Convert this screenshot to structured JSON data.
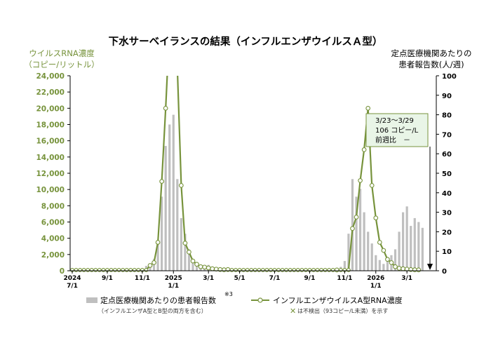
{
  "chart_data": {
    "type": "bar+line",
    "title": "下水サーベイランスの結果（インフルエンザウイルスＡ型）",
    "left_axis": {
      "label_line1": "ウイルスRNA濃度",
      "label_line2": "（コピー/リットル）",
      "ylim": [
        0,
        24000
      ],
      "ticks": [
        0,
        2000,
        4000,
        6000,
        8000,
        10000,
        12000,
        14000,
        16000,
        18000,
        20000,
        22000,
        24000
      ],
      "tick_labels": [
        "0",
        "2,000",
        "4,000",
        "6,000",
        "8,000",
        "10,000",
        "12,000",
        "14,000",
        "16,000",
        "18,000",
        "20,000",
        "22,000",
        "24,000"
      ],
      "color": "#77933c"
    },
    "right_axis": {
      "label_line1": "定点医療機関あたりの",
      "label_line2": "患者報告数(人/週)",
      "ylim": [
        0,
        100
      ],
      "ticks": [
        0,
        10,
        20,
        30,
        40,
        50,
        60,
        70,
        80,
        90,
        100
      ],
      "tick_labels": [
        "0",
        "10",
        "20",
        "30",
        "40",
        "50",
        "60",
        "70",
        "80",
        "90",
        "100"
      ]
    },
    "x_ticks": [
      {
        "week": 0,
        "line1": "2024",
        "line2": "7/1"
      },
      {
        "week": 9,
        "line1": "9/1",
        "line2": ""
      },
      {
        "week": 18,
        "line1": "11/1",
        "line2": ""
      },
      {
        "week": 26,
        "line1": "2025",
        "line2": "1/1"
      },
      {
        "week": 35,
        "line1": "3/1",
        "line2": ""
      },
      {
        "week": 43,
        "line1": "5/1",
        "line2": ""
      },
      {
        "week": 52,
        "line1": "7/1",
        "line2": ""
      },
      {
        "week": 61,
        "line1": "9/1",
        "line2": ""
      },
      {
        "week": 70,
        "line1": "11/1",
        "line2": ""
      },
      {
        "week": 78,
        "line1": "2026",
        "line2": "1/1"
      },
      {
        "week": 86,
        "line1": "3/1",
        "line2": ""
      }
    ],
    "bars_series": {
      "name": "定点医療機関あたりの患者報告数",
      "note_mark": "※3",
      "sublabel": "（インフルエンザA型とB型の両方を含む）",
      "color": "#bfbfbf",
      "values": [
        0.1,
        0.1,
        0.1,
        0.1,
        0.1,
        0.1,
        0.1,
        0.1,
        0.1,
        0.1,
        0.1,
        0.1,
        0.2,
        0.2,
        0.3,
        0.4,
        0.5,
        0.8,
        1.2,
        2.5,
        3.5,
        6,
        14,
        38,
        64,
        75,
        80,
        47,
        27,
        19,
        11,
        6,
        4,
        3,
        2.5,
        3,
        2,
        1.2,
        1,
        0.5,
        0.3,
        0.2,
        0.2,
        0.1,
        0.1,
        0.1,
        0.1,
        0.1,
        0.1,
        0.1,
        0.1,
        0.1,
        0.1,
        0.1,
        0.1,
        0.1,
        0.1,
        0.1,
        0.1,
        0.1,
        0.1,
        0.1,
        0.1,
        0.1,
        0.1,
        0.2,
        0.3,
        0.5,
        1,
        2,
        5,
        19,
        47,
        38,
        42,
        30,
        20,
        14,
        8,
        5.5,
        3.5,
        5,
        8,
        11,
        20,
        30,
        33,
        23,
        27,
        25,
        22
      ],
      "bar_positions_comment": ""
    },
    "line_series": {
      "name": "インフルエンザウイルスA型RNA濃度",
      "sublabel": "は不検出（93コピー/L未満）を示す",
      "color": "#77933c",
      "values": [
        93,
        93,
        93,
        93,
        93,
        93,
        93,
        93,
        93,
        93,
        93,
        93,
        93,
        93,
        93,
        93,
        93,
        93,
        93,
        93,
        650,
        1000,
        3500,
        11000,
        20000,
        30000,
        60000,
        25000,
        10500,
        3400,
        2300,
        1200,
        800,
        500,
        450,
        350,
        250,
        200,
        150,
        120,
        150,
        93,
        93,
        93,
        93,
        93,
        93,
        93,
        93,
        93,
        93,
        93,
        93,
        93,
        93,
        93,
        93,
        93,
        93,
        93,
        93,
        93,
        93,
        93,
        93,
        93,
        93,
        93,
        100,
        93,
        93,
        93,
        5200,
        6600,
        11100,
        14900,
        20000,
        10500,
        6500,
        3500,
        2500,
        1400,
        1000,
        500,
        300,
        250,
        200,
        150,
        120,
        106
      ],
      "non_detect_value": 93
    },
    "callout": {
      "line1": "3/23～3/29",
      "line2": "106 コピー/L",
      "line3": "前週比　－"
    }
  }
}
